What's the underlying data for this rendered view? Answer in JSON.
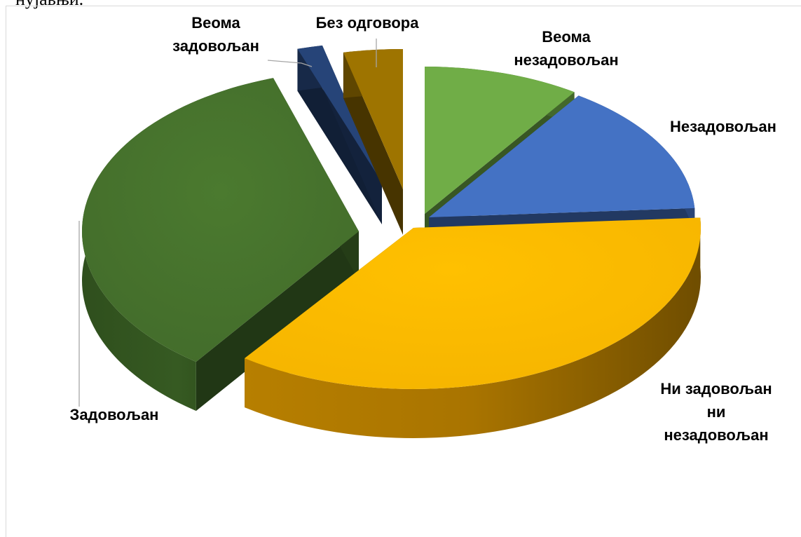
{
  "page": {
    "top_fragment": "нујавњи."
  },
  "chart_data": {
    "type": "pie",
    "style": "3d-exploded",
    "legend": "none",
    "slices": [
      {
        "label": "Веома незадовољан",
        "value": 9.5,
        "color": "#70ad47"
      },
      {
        "label": "Незадовољан",
        "value": 14.5,
        "color": "#4472c4"
      },
      {
        "label": "Ни задовољан ни незадовољан",
        "value": 36,
        "color": "#ffc000"
      },
      {
        "label": "Задовољан",
        "value": 35,
        "color": "#4a7a2e"
      },
      {
        "label": "Веома задовољан",
        "value": 1.5,
        "color": "#264478"
      },
      {
        "label": "Без одговора",
        "value": 3.5,
        "color": "#9e7400"
      }
    ]
  },
  "labels": {
    "very_dissatisfied": [
      "Веома",
      "незадовољан"
    ],
    "dissatisfied": [
      "Незадовољан"
    ],
    "neutral": [
      "Ни задовољан",
      "ни",
      "незадовољан"
    ],
    "satisfied": [
      "Задовољан"
    ],
    "very_satisfied": [
      "Веома",
      "задовољан"
    ],
    "no_answer": [
      "Без одговора"
    ]
  }
}
